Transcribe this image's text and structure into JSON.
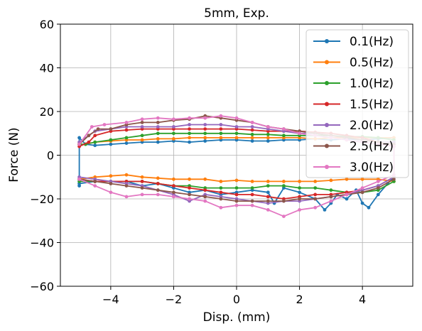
{
  "chart_data": {
    "type": "line",
    "title": "5mm, Exp.",
    "xlabel": "Disp. (mm)",
    "ylabel": "Force (N)",
    "xlim": [
      -5.6,
      5.6
    ],
    "ylim": [
      -60,
      60
    ],
    "xticks": [
      -4,
      -2,
      0,
      2,
      4
    ],
    "xtick_labels": [
      "−4",
      "−2",
      "0",
      "2",
      "4"
    ],
    "yticks": [
      -60,
      -40,
      -20,
      0,
      20,
      40,
      60
    ],
    "ytick_labels": [
      "−60",
      "−40",
      "−20",
      "0",
      "20",
      "40",
      "60"
    ],
    "grid": true,
    "legend_position": "top-right",
    "series": [
      {
        "name": "0.1(Hz)",
        "color": "#1f77b4",
        "x": [
          -5.0,
          -5.0,
          -4.8,
          -4.5,
          -4.0,
          -3.5,
          -3.0,
          -2.5,
          -2.0,
          -1.5,
          -1.0,
          -0.5,
          0.0,
          0.5,
          1.0,
          1.5,
          2.0,
          2.5,
          3.0,
          3.5,
          4.0,
          4.5,
          5.0,
          5.0,
          4.8,
          4.5,
          4.2,
          4.0,
          3.8,
          3.5,
          3.2,
          3.0,
          2.8,
          2.5,
          2.0,
          1.5,
          1.2,
          1.0,
          0.5,
          0.0,
          -0.5,
          -1.0,
          -1.5,
          -2.0,
          -2.5,
          -3.0,
          -3.5,
          -4.0,
          -4.5,
          -5.0
        ],
        "y": [
          -14,
          8,
          5,
          4.5,
          5,
          5.5,
          6,
          6,
          6.5,
          6,
          6.5,
          7,
          7,
          6.5,
          6.5,
          7,
          7,
          7.5,
          7,
          7.5,
          7,
          7.5,
          8,
          -10,
          -13,
          -18,
          -24,
          -22,
          -16,
          -20,
          -18,
          -22,
          -25,
          -20,
          -17,
          -15,
          -22,
          -17,
          -16,
          -17,
          -18,
          -16,
          -17,
          -15,
          -13,
          -14,
          -12,
          -12,
          -12,
          -13
        ]
      },
      {
        "name": "0.5(Hz)",
        "color": "#ff7f0e",
        "x": [
          -5.0,
          -4.8,
          -4.5,
          -4.0,
          -3.5,
          -3.0,
          -2.5,
          -2.0,
          -1.5,
          -1.0,
          -0.5,
          0.0,
          0.5,
          1.0,
          1.5,
          2.0,
          2.5,
          3.0,
          3.5,
          4.0,
          4.5,
          5.0,
          5.0,
          4.5,
          4.0,
          3.5,
          3.0,
          2.5,
          2.0,
          1.5,
          1.0,
          0.5,
          0.0,
          -0.5,
          -1.0,
          -1.5,
          -2.0,
          -2.5,
          -3.0,
          -3.5,
          -4.0,
          -4.5,
          -5.0
        ],
        "y": [
          5,
          5,
          6,
          6.5,
          7,
          7,
          7.5,
          7.5,
          8,
          8,
          8,
          8,
          8,
          8,
          8,
          8,
          7.5,
          8,
          8,
          8,
          8,
          8,
          -12,
          -11,
          -11,
          -11,
          -11.5,
          -12,
          -12,
          -12,
          -12,
          -12,
          -11.5,
          -12,
          -11,
          -11,
          -11,
          -10.5,
          -10,
          -9,
          -9.5,
          -10,
          -11
        ]
      },
      {
        "name": "1.0(Hz)",
        "color": "#2ca02c",
        "x": [
          -5.0,
          -4.8,
          -4.5,
          -4.0,
          -3.5,
          -3.0,
          -2.5,
          -2.0,
          -1.5,
          -1.0,
          -0.5,
          0.0,
          0.5,
          1.0,
          1.5,
          2.0,
          2.5,
          3.0,
          3.5,
          4.0,
          4.5,
          5.0,
          5.0,
          4.5,
          4.0,
          3.5,
          3.0,
          2.5,
          2.0,
          1.5,
          1.0,
          0.5,
          0.0,
          -0.5,
          -1.0,
          -1.5,
          -2.0,
          -2.5,
          -3.0,
          -3.5,
          -4.0,
          -4.5,
          -5.0
        ],
        "y": [
          5,
          5,
          6,
          7,
          8,
          9,
          10,
          10,
          10,
          10,
          10,
          10,
          9.5,
          9.5,
          9,
          9,
          9,
          9,
          8.5,
          8.5,
          8,
          7,
          -12,
          -16,
          -17,
          -17,
          -16,
          -15,
          -15,
          -14,
          -14,
          -15,
          -15,
          -15,
          -15,
          -14,
          -14,
          -13,
          -12,
          -12,
          -12,
          -12,
          -12
        ]
      },
      {
        "name": "1.5(Hz)",
        "color": "#d62728",
        "x": [
          -5.0,
          -4.7,
          -4.5,
          -4.0,
          -3.5,
          -3.0,
          -2.5,
          -2.0,
          -1.5,
          -1.0,
          -0.5,
          0.0,
          0.5,
          1.0,
          1.5,
          2.0,
          2.5,
          3.0,
          3.5,
          4.0,
          4.5,
          5.0,
          5.0,
          4.5,
          4.0,
          3.5,
          3.0,
          2.5,
          2.0,
          1.5,
          1.0,
          0.5,
          0.0,
          -0.5,
          -1.0,
          -1.5,
          -2.0,
          -2.5,
          -3.0,
          -3.5,
          -4.0,
          -4.5,
          -5.0
        ],
        "y": [
          4,
          6,
          9,
          11,
          11.5,
          12,
          12,
          12,
          12,
          12,
          12,
          12,
          11.5,
          11,
          11,
          11,
          10.5,
          10,
          9,
          8,
          6,
          4,
          -10,
          -14,
          -16,
          -17,
          -18,
          -18,
          -19,
          -20,
          -19,
          -18,
          -18,
          -17,
          -16,
          -15,
          -14,
          -13,
          -12,
          -12,
          -12,
          -12,
          -11
        ]
      },
      {
        "name": "2.0(Hz)",
        "color": "#9467bd",
        "x": [
          -5.0,
          -4.7,
          -4.5,
          -4.0,
          -3.5,
          -3.0,
          -2.5,
          -2.0,
          -1.5,
          -1.0,
          -0.5,
          0.0,
          0.5,
          1.0,
          1.5,
          2.0,
          2.5,
          3.0,
          3.5,
          4.0,
          4.5,
          5.0,
          5.0,
          4.5,
          4.0,
          3.5,
          3.0,
          2.5,
          2.0,
          1.5,
          1.0,
          0.5,
          0.0,
          -0.5,
          -1.0,
          -1.5,
          -2.0,
          -2.5,
          -3.0,
          -3.5,
          -4.0,
          -4.5,
          -5.0
        ],
        "y": [
          6,
          9,
          11,
          12,
          13,
          13,
          13,
          13,
          14,
          14,
          14,
          13,
          13,
          12,
          11,
          10,
          10,
          9,
          8,
          7,
          6,
          6,
          -10,
          -14,
          -16,
          -18,
          -19,
          -20,
          -21,
          -21,
          -22,
          -21,
          -20,
          -19,
          -18,
          -21,
          -18,
          -16,
          -14,
          -13,
          -12,
          -11,
          -10
        ]
      },
      {
        "name": "2.5(Hz)",
        "color": "#8c564b",
        "x": [
          -5.0,
          -4.7,
          -4.4,
          -4.0,
          -3.5,
          -3.0,
          -2.5,
          -2.0,
          -1.5,
          -1.0,
          -0.5,
          0.0,
          0.5,
          1.0,
          1.5,
          2.0,
          2.5,
          3.0,
          3.5,
          4.0,
          4.5,
          5.0,
          5.0,
          4.5,
          4.0,
          3.5,
          3.0,
          2.5,
          2.0,
          1.5,
          1.0,
          0.5,
          0.0,
          -0.5,
          -1.0,
          -1.5,
          -2.0,
          -2.5,
          -3.0,
          -3.5,
          -4.0,
          -4.5,
          -5.0
        ],
        "y": [
          5,
          9,
          12,
          12,
          14,
          15,
          15,
          16,
          16.5,
          18,
          17,
          16,
          15,
          13,
          12,
          11,
          10,
          9,
          8,
          7,
          6,
          5,
          -11,
          -15,
          -17,
          -18,
          -19,
          -20,
          -20,
          -21,
          -21,
          -21,
          -21,
          -20,
          -19,
          -18,
          -17,
          -16,
          -15,
          -14,
          -13,
          -12,
          -11
        ]
      },
      {
        "name": "3.0(Hz)",
        "color": "#e377c2",
        "x": [
          -5.0,
          -4.6,
          -4.2,
          -3.5,
          -3.0,
          -2.5,
          -2.0,
          -1.5,
          -1.0,
          -0.5,
          0.0,
          0.5,
          1.0,
          1.5,
          2.0,
          2.5,
          3.0,
          3.5,
          4.0,
          4.5,
          5.0,
          5.0,
          4.5,
          4.0,
          3.5,
          3.0,
          2.5,
          2.0,
          1.5,
          1.0,
          0.5,
          0.0,
          -0.5,
          -1.0,
          -1.5,
          -2.0,
          -2.5,
          -3.0,
          -3.5,
          -4.0,
          -4.5,
          -5.0
        ],
        "y": [
          5,
          13,
          14,
          15,
          16.5,
          17,
          16.5,
          17,
          17,
          18,
          17,
          15,
          13,
          12,
          10,
          9,
          8,
          7,
          6,
          5,
          4,
          -9,
          -12,
          -15,
          -18,
          -21,
          -24,
          -25,
          -28,
          -25,
          -23,
          -23,
          -24,
          -21,
          -20,
          -19,
          -18,
          -18,
          -19,
          -17,
          -14,
          -11
        ]
      }
    ]
  }
}
